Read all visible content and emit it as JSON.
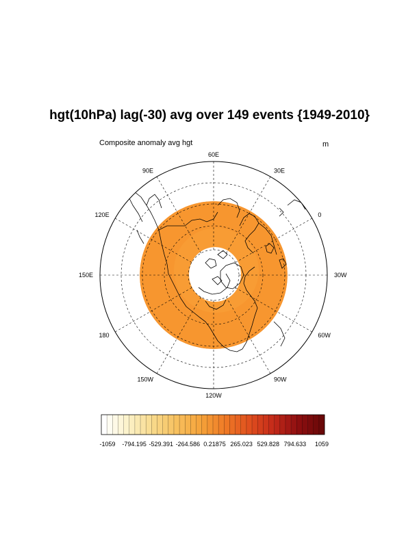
{
  "title": "hgt(10hPa) lag(-30) avg over 149 events {1949-2010}",
  "subtitle_left": "Composite anomaly avg hgt",
  "units": "m",
  "map": {
    "projection": "north-polar-stereographic",
    "longitude_labels": [
      "60E",
      "30E",
      "0",
      "30W",
      "60W",
      "90W",
      "120W",
      "150W",
      "180",
      "150E",
      "120E",
      "90E"
    ],
    "fill_color": "#F7962F",
    "fill_color_inner": "#F9A23A",
    "field_value_approx": 300
  },
  "colorbar": {
    "tick_labels": [
      "-1059",
      "-794.195",
      "-529.391",
      "-264.586",
      "0.21875",
      "265.023",
      "529.828",
      "794.633",
      "1059"
    ],
    "min": -1059,
    "max": 1059,
    "color_stops": [
      "#FFFFFF",
      "#FCF2C8",
      "#F8DA8C",
      "#F7C05E",
      "#F5A33A",
      "#EF7A26",
      "#E0501E",
      "#C42A1A",
      "#8E0F10",
      "#6A0808"
    ]
  }
}
